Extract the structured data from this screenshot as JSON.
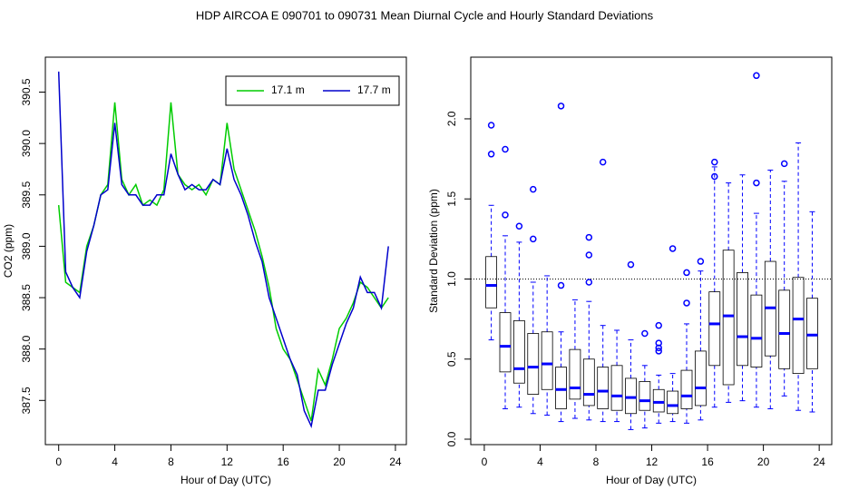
{
  "title": "HDP   AIRCOA E   090701 to 090731   Mean Diurnal Cycle and Hourly Standard Deviations",
  "chart_data": [
    {
      "type": "line",
      "xlabel": "Hour of Day (UTC)",
      "ylabel": "CO2 (ppm)",
      "x": [
        0,
        0.5,
        1,
        1.5,
        2,
        2.5,
        3,
        3.5,
        4,
        4.5,
        5,
        5.5,
        6,
        6.5,
        7,
        7.5,
        8,
        8.5,
        9,
        9.5,
        10,
        10.5,
        11,
        11.5,
        12,
        12.5,
        13,
        13.5,
        14,
        14.5,
        15,
        15.5,
        16,
        16.5,
        17,
        17.5,
        18,
        18.5,
        19,
        19.5,
        20,
        20.5,
        21,
        21.5,
        22,
        22.5,
        23,
        23.5
      ],
      "series": [
        {
          "name": "17.1 m",
          "color": "#00cc00",
          "values": [
            389.4,
            388.65,
            388.6,
            388.55,
            389.0,
            389.2,
            389.5,
            389.6,
            390.4,
            389.65,
            389.5,
            389.6,
            389.4,
            389.45,
            389.4,
            389.55,
            390.4,
            389.7,
            389.6,
            389.55,
            389.6,
            389.5,
            389.65,
            389.6,
            390.2,
            389.75,
            389.55,
            389.35,
            389.15,
            388.9,
            388.6,
            388.2,
            388.0,
            387.9,
            387.7,
            387.5,
            387.3,
            387.8,
            387.65,
            387.9,
            388.2,
            388.3,
            388.45,
            388.65,
            388.6,
            388.5,
            388.4,
            388.5
          ]
        },
        {
          "name": "17.7 m",
          "color": "#0000cc",
          "values": [
            390.7,
            388.75,
            388.6,
            388.5,
            388.95,
            389.2,
            389.5,
            389.55,
            390.2,
            389.6,
            389.5,
            389.5,
            389.4,
            389.4,
            389.5,
            389.5,
            389.9,
            389.7,
            389.55,
            389.6,
            389.55,
            389.55,
            389.65,
            389.6,
            389.95,
            389.65,
            389.5,
            389.3,
            389.05,
            388.85,
            388.5,
            388.3,
            388.1,
            387.9,
            387.75,
            387.4,
            387.25,
            387.6,
            387.6,
            387.85,
            388.05,
            388.25,
            388.4,
            388.7,
            388.55,
            388.55,
            388.4,
            389.0
          ]
        }
      ],
      "xlim": [
        -0.95,
        24.78
      ],
      "xticks": [
        0,
        4,
        8,
        12,
        16,
        20,
        24
      ],
      "ylim": [
        387.07,
        390.84
      ],
      "yticks": [
        387.5,
        {
          "value": 388,
          "label": "388.0"
        },
        388.5,
        {
          "value": 389,
          "label": "389.0"
        },
        389.5,
        {
          "value": 390,
          "label": "390.0"
        },
        390.5
      ],
      "legend": "topright"
    },
    {
      "type": "box",
      "xlabel": "Hour of Day (UTC)",
      "ylabel": "Standard Deviation (ppm)",
      "color": "#0000ff",
      "x": [
        0.5,
        1.5,
        2.5,
        3.5,
        4.5,
        5.5,
        6.5,
        7.5,
        8.5,
        9.5,
        10.5,
        11.5,
        12.5,
        13.5,
        14.5,
        15.5,
        16.5,
        17.5,
        18.5,
        19.5,
        20.5,
        21.5,
        22.5,
        23.5
      ],
      "whisker_low": [
        0.62,
        0.19,
        0.2,
        0.16,
        0.15,
        0.11,
        0.13,
        0.12,
        0.11,
        0.11,
        0.06,
        0.07,
        0.1,
        0.11,
        0.1,
        0.12,
        0.2,
        0.23,
        0.24,
        0.2,
        0.19,
        0.27,
        0.18,
        0.17
      ],
      "q1": [
        0.82,
        0.42,
        0.35,
        0.28,
        0.31,
        0.19,
        0.25,
        0.21,
        0.19,
        0.18,
        0.16,
        0.18,
        0.17,
        0.16,
        0.19,
        0.21,
        0.46,
        0.34,
        0.46,
        0.45,
        0.52,
        0.44,
        0.41,
        0.44
      ],
      "median": [
        0.96,
        0.58,
        0.44,
        0.45,
        0.47,
        0.31,
        0.32,
        0.28,
        0.3,
        0.27,
        0.26,
        0.24,
        0.23,
        0.21,
        0.27,
        0.32,
        0.72,
        0.77,
        0.64,
        0.63,
        0.82,
        0.66,
        0.75,
        0.65
      ],
      "q3": [
        1.14,
        0.79,
        0.74,
        0.66,
        0.67,
        0.45,
        0.56,
        0.5,
        0.45,
        0.46,
        0.38,
        0.36,
        0.31,
        0.3,
        0.43,
        0.55,
        0.92,
        1.18,
        1.04,
        0.9,
        1.11,
        0.93,
        1.01,
        0.88
      ],
      "whisker_high": [
        1.46,
        1.27,
        1.23,
        0.98,
        1.02,
        0.67,
        0.87,
        0.86,
        0.71,
        0.68,
        0.62,
        0.46,
        0.4,
        0.41,
        0.72,
        1.05,
        1.7,
        1.6,
        1.65,
        1.41,
        1.68,
        1.61,
        1.85,
        1.42
      ],
      "outliers": [
        [
          1.96,
          1.78
        ],
        [
          1.81,
          1.4
        ],
        [
          1.33
        ],
        [
          1.56,
          1.25
        ],
        [],
        [
          2.08,
          0.96
        ],
        [],
        [
          1.26,
          1.15,
          0.98
        ],
        [
          1.73
        ],
        [],
        [
          1.09
        ],
        [
          0.66
        ],
        [
          0.71,
          0.6,
          0.57,
          0.55
        ],
        [
          1.19
        ],
        [
          1.04,
          0.85
        ],
        [
          1.11
        ],
        [
          1.73,
          1.64
        ],
        [],
        [],
        [
          2.27,
          1.6
        ],
        [],
        [
          1.72
        ],
        [],
        []
      ],
      "xlim": [
        -0.97,
        24.9
      ],
      "xticks": [
        0,
        4,
        8,
        12,
        16,
        20,
        24
      ],
      "ylim": [
        -0.034,
        2.385
      ],
      "yticks": [
        {
          "value": 0,
          "label": "0.0"
        },
        0.5,
        {
          "value": 1,
          "label": "1.0"
        },
        1.5,
        {
          "value": 2,
          "label": "2.0"
        }
      ],
      "hline": 1
    }
  ]
}
